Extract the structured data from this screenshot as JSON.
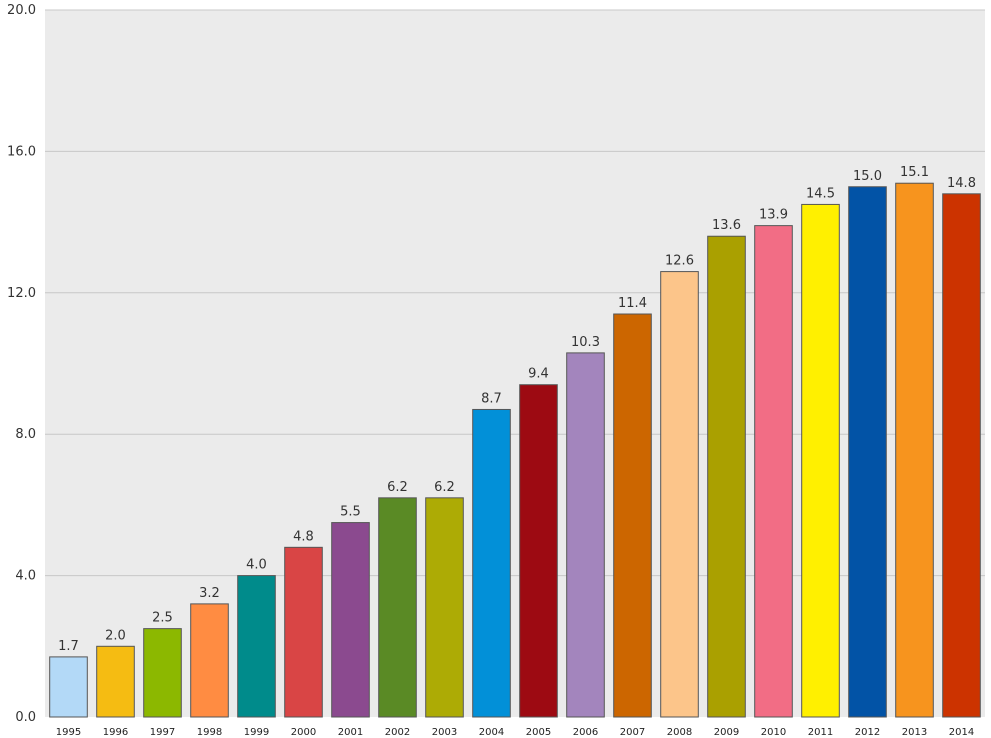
{
  "chart_data": {
    "type": "bar",
    "title": "",
    "xlabel": "",
    "ylabel": "",
    "ylim": [
      0,
      20
    ],
    "yticks": [
      "0.0",
      "4.0",
      "8.0",
      "12.0",
      "16.0",
      "20.0"
    ],
    "grid": true,
    "legend": "none",
    "background_color": "#ebebeb",
    "grid_color": "#c8c8c8",
    "categories": [
      "1995",
      "1996",
      "1997",
      "1998",
      "1999",
      "2000",
      "2001",
      "2002",
      "2003",
      "2004",
      "2005",
      "2006",
      "2007",
      "2008",
      "2009",
      "2010",
      "2011",
      "2012",
      "2013",
      "2014"
    ],
    "values": [
      1.7,
      2.0,
      2.5,
      3.2,
      4.0,
      4.8,
      5.5,
      6.2,
      6.2,
      8.7,
      9.4,
      10.3,
      11.4,
      12.6,
      13.6,
      13.9,
      14.5,
      15.0,
      15.1,
      14.8
    ],
    "value_labels": [
      "1.7",
      "2.0",
      "2.5",
      "3.2",
      "4.0",
      "4.8",
      "5.5",
      "6.2",
      "6.2",
      "8.7",
      "9.4",
      "10.3",
      "11.4",
      "12.6",
      "13.6",
      "13.9",
      "14.5",
      "15.0",
      "15.1",
      "14.8"
    ],
    "colors": [
      "#b3d9f7",
      "#f5bc12",
      "#8cb800",
      "#ff8c42",
      "#008b8b",
      "#d94545",
      "#8b4a8f",
      "#5a8a25",
      "#adab05",
      "#0290d8",
      "#9d0a12",
      "#a385bd",
      "#cc6600",
      "#fcc58a",
      "#aaa000",
      "#f26d85",
      "#fff000",
      "#0253a6",
      "#f7941e",
      "#cc3300"
    ]
  }
}
